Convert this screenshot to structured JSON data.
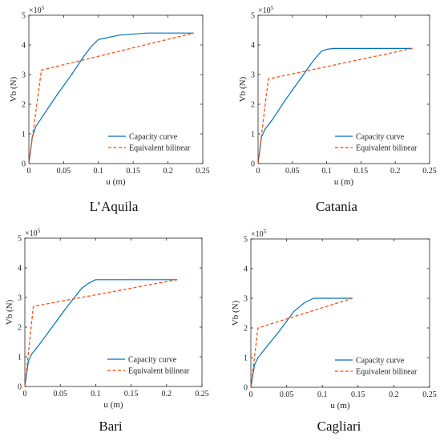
{
  "chart_data": [
    {
      "type": "line",
      "caption": "L’Aquila",
      "xlabel": "u (m)",
      "ylabel": "Vb (N)",
      "y_multiplier": "×10",
      "y_multiplier_exp": "5",
      "xlim": [
        0,
        0.25
      ],
      "ylim": [
        0,
        5
      ],
      "xticks": [
        0,
        0.05,
        0.1,
        0.15,
        0.2,
        0.25
      ],
      "xtick_labels": [
        "0",
        "0.05",
        "0.1",
        "0.15",
        "0.2",
        "0.25"
      ],
      "yticks": [
        0,
        1,
        2,
        3,
        4,
        5
      ],
      "ytick_labels": [
        "0",
        "1",
        "2",
        "3",
        "4",
        "5"
      ],
      "legend_position": "bottom-right",
      "series": [
        {
          "name": "Capacity curve",
          "style": "solid",
          "color": "#0072BD",
          "x": [
            0,
            0.005,
            0.01,
            0.02,
            0.04,
            0.06,
            0.08,
            0.09,
            0.1,
            0.13,
            0.17,
            0.237
          ],
          "y": [
            0,
            0.9,
            1.25,
            1.6,
            2.3,
            2.95,
            3.65,
            3.95,
            4.18,
            4.33,
            4.4,
            4.4
          ]
        },
        {
          "name": "Equivalent bilinear",
          "style": "dashed",
          "color": "#FF4500",
          "x": [
            0,
            0.018,
            0.237
          ],
          "y": [
            0,
            3.15,
            4.4
          ]
        }
      ]
    },
    {
      "type": "line",
      "caption": "Catania",
      "xlabel": "u (m)",
      "ylabel": "Vb (N)",
      "y_multiplier": "×10",
      "y_multiplier_exp": "5",
      "xlim": [
        0,
        0.25
      ],
      "ylim": [
        0,
        5
      ],
      "xticks": [
        0,
        0.05,
        0.1,
        0.15,
        0.2,
        0.25
      ],
      "xtick_labels": [
        "0",
        "0.05",
        "0.1",
        "0.15",
        "0.2",
        "0.25"
      ],
      "yticks": [
        0,
        1,
        2,
        3,
        4,
        5
      ],
      "ytick_labels": [
        "0",
        "1",
        "2",
        "3",
        "4",
        "5"
      ],
      "legend_position": "bottom-right",
      "series": [
        {
          "name": "Capacity curve",
          "style": "solid",
          "color": "#0072BD",
          "x": [
            0,
            0.005,
            0.01,
            0.02,
            0.04,
            0.06,
            0.08,
            0.092,
            0.1,
            0.11,
            0.225
          ],
          "y": [
            0,
            0.9,
            1.15,
            1.45,
            2.15,
            2.8,
            3.45,
            3.78,
            3.85,
            3.88,
            3.88
          ]
        },
        {
          "name": "Equivalent bilinear",
          "style": "dashed",
          "color": "#FF4500",
          "x": [
            0,
            0.015,
            0.225
          ],
          "y": [
            0,
            2.85,
            3.88
          ]
        }
      ]
    },
    {
      "type": "line",
      "caption": "Bari",
      "xlabel": "u (m)",
      "ylabel": "Vb (N)",
      "y_multiplier": "×10",
      "y_multiplier_exp": "5",
      "xlim": [
        0,
        0.25
      ],
      "ylim": [
        0,
        5
      ],
      "xticks": [
        0,
        0.05,
        0.1,
        0.15,
        0.2,
        0.25
      ],
      "xtick_labels": [
        "0",
        "0.05",
        "0.1",
        "0.15",
        "0.2",
        "0.25"
      ],
      "yticks": [
        0,
        1,
        2,
        3,
        4,
        5
      ],
      "ytick_labels": [
        "0",
        "1",
        "2",
        "3",
        "4",
        "5"
      ],
      "legend_position": "bottom-right",
      "series": [
        {
          "name": "Capacity curve",
          "style": "solid",
          "color": "#0072BD",
          "x": [
            0,
            0.005,
            0.01,
            0.02,
            0.04,
            0.06,
            0.08,
            0.09,
            0.1,
            0.215
          ],
          "y": [
            0,
            0.85,
            1.1,
            1.4,
            2.05,
            2.7,
            3.3,
            3.48,
            3.6,
            3.6
          ]
        },
        {
          "name": "Equivalent bilinear",
          "style": "dashed",
          "color": "#FF4500",
          "x": [
            0,
            0.012,
            0.215
          ],
          "y": [
            0,
            2.7,
            3.6
          ]
        }
      ]
    },
    {
      "type": "line",
      "caption": "Cagliari",
      "xlabel": "u (m)",
      "ylabel": "Vb (N)",
      "y_multiplier": "×10",
      "y_multiplier_exp": "5",
      "xlim": [
        0,
        0.25
      ],
      "ylim": [
        0,
        5
      ],
      "xticks": [
        0,
        0.05,
        0.1,
        0.15,
        0.2,
        0.25
      ],
      "xtick_labels": [
        "0",
        "0.05",
        "0.1",
        "0.15",
        "0.2",
        "0.25"
      ],
      "yticks": [
        0,
        1,
        2,
        3,
        4,
        5
      ],
      "ytick_labels": [
        "0",
        "1",
        "2",
        "3",
        "4",
        "5"
      ],
      "legend_position": "bottom-right",
      "series": [
        {
          "name": "Capacity curve",
          "style": "solid",
          "color": "#0072BD",
          "x": [
            0,
            0.005,
            0.01,
            0.02,
            0.04,
            0.06,
            0.075,
            0.088,
            0.142
          ],
          "y": [
            0,
            0.75,
            1.0,
            1.3,
            1.9,
            2.55,
            2.85,
            3.0,
            3.0
          ]
        },
        {
          "name": "Equivalent bilinear",
          "style": "dashed",
          "color": "#FF4500",
          "x": [
            0,
            0.01,
            0.142
          ],
          "y": [
            0,
            2.0,
            3.0
          ]
        }
      ]
    }
  ]
}
